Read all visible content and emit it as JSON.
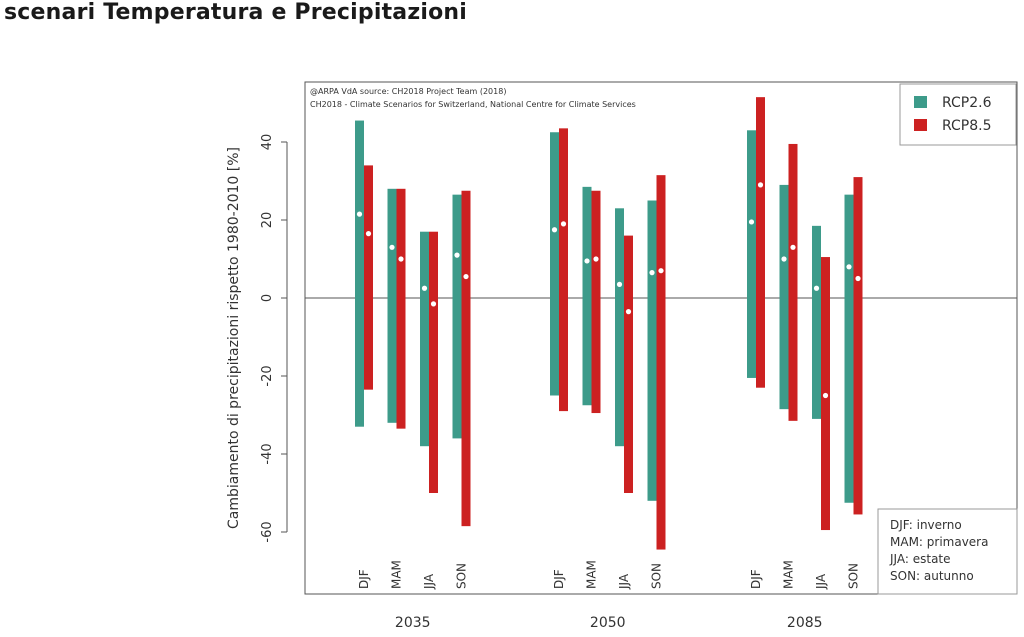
{
  "page": {
    "title": "scenari Temperatura e Precipitazioni"
  },
  "chart_data": {
    "type": "bar",
    "credit_line_1": "@ARPA VdA source: CH2018 Project Team (2018)",
    "credit_line_2": "CH2018 - Climate Scenarios for Switzerland, National Centre for Climate Services",
    "ylabel": "Cambiamento di precipitazioni rispetto 1980-2010 [%]",
    "ylim": [
      -72,
      56
    ],
    "yticks": [
      "40",
      "20",
      "0",
      "-20",
      "-40",
      "-60"
    ],
    "ytick_values": [
      40,
      20,
      0,
      -20,
      -40,
      -60
    ],
    "horizons": [
      "2035",
      "2050",
      "2085"
    ],
    "seasons": [
      "DJF",
      "MAM",
      "JJA",
      "SON"
    ],
    "legend": {
      "position": "top-right",
      "entries": [
        {
          "label": "RCP2.6",
          "color": "#3d9b8a"
        },
        {
          "label": "RCP8.5",
          "color": "#cc2121"
        }
      ]
    },
    "season_legend": {
      "position": "bottom-right",
      "lines": [
        "DJF: inverno",
        "MAM: primavera",
        "JJA: estate",
        "SON: autunno"
      ]
    },
    "zero_line": true,
    "series": [
      {
        "name": "RCP2.6",
        "color": "#3d9b8a",
        "ranges": [
          [
            [
              -33,
              45.5
            ],
            [
              -32,
              28
            ],
            [
              -38,
              17
            ],
            [
              -36,
              26.5
            ]
          ],
          [
            [
              -25,
              42.5
            ],
            [
              -27.5,
              28.5
            ],
            [
              -38,
              23
            ],
            [
              -52,
              25
            ]
          ],
          [
            [
              -20.5,
              43
            ],
            [
              -28.5,
              29
            ],
            [
              -31,
              18.5
            ],
            [
              -52.5,
              26.5
            ]
          ]
        ],
        "medians": [
          [
            21.5,
            13,
            2.5,
            11
          ],
          [
            17.5,
            9.5,
            3.5,
            6.5
          ],
          [
            19.5,
            10,
            2.5,
            8
          ]
        ]
      },
      {
        "name": "RCP8.5",
        "color": "#cc2121",
        "ranges": [
          [
            [
              -23.5,
              34
            ],
            [
              -33.5,
              28
            ],
            [
              -50,
              17
            ],
            [
              -58.5,
              27.5
            ]
          ],
          [
            [
              -29,
              43.5
            ],
            [
              -29.5,
              27.5
            ],
            [
              -50,
              16
            ],
            [
              -64.5,
              31.5
            ]
          ],
          [
            [
              -23,
              51.5
            ],
            [
              -31.5,
              39.5
            ],
            [
              -59.5,
              10.5
            ],
            [
              -55.5,
              31
            ]
          ]
        ],
        "medians": [
          [
            16.5,
            10,
            -1.5,
            5.5
          ],
          [
            19,
            10,
            -3.5,
            7
          ],
          [
            29,
            13,
            -25,
            5
          ]
        ]
      }
    ]
  }
}
